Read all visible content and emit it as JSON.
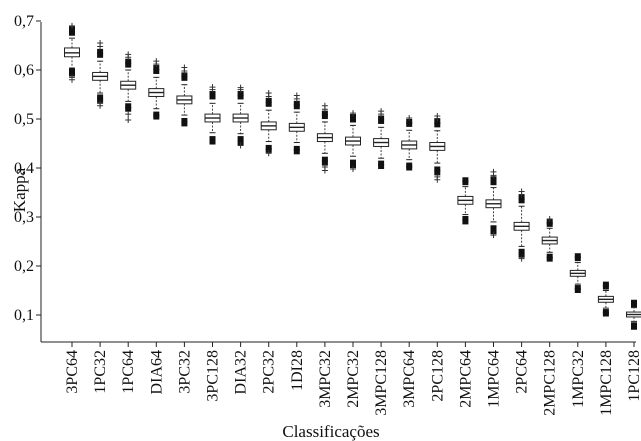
{
  "chart_data": {
    "type": "boxplot",
    "xlabel": "Classificações",
    "ylabel": "Kappa",
    "ylim": [
      0.07,
      0.71
    ],
    "yticks": [
      0.1,
      0.2,
      0.3,
      0.4,
      0.5,
      0.6,
      0.7
    ],
    "ytick_labels": [
      "0,1",
      "0,2",
      "0,3",
      "0,4",
      "0,5",
      "0,6",
      "0,7"
    ],
    "grid": false,
    "categories": [
      "3PC64",
      "1PC32",
      "1PC64",
      "DIA64",
      "3PC32",
      "3PC128",
      "DIA32",
      "2PC32",
      "1DI28",
      "3MPC32",
      "2MPC32",
      "3MPC128",
      "3MPC64",
      "2PC128",
      "2MPC64",
      "1MPC64",
      "2PC64",
      "2MPC128",
      "1MPC32",
      "1MPC128",
      "1PC128"
    ],
    "boxes": [
      {
        "q1": 0.627,
        "median": 0.635,
        "q3": 0.645,
        "whisker_low": 0.604,
        "whisker_high": 0.665,
        "outliers_low": [
          0.598,
          0.592,
          0.585,
          0.58
        ],
        "outliers_high": [
          0.675,
          0.684,
          0.69
        ]
      },
      {
        "q1": 0.579,
        "median": 0.587,
        "q3": 0.595,
        "whisker_low": 0.553,
        "whisker_high": 0.618,
        "outliers_low": [
          0.545,
          0.538,
          0.532,
          0.527
        ],
        "outliers_high": [
          0.63,
          0.638,
          0.648,
          0.655
        ]
      },
      {
        "q1": 0.561,
        "median": 0.569,
        "q3": 0.577,
        "whisker_low": 0.536,
        "whisker_high": 0.6,
        "outliers_low": [
          0.527,
          0.52,
          0.51,
          0.498
        ],
        "outliers_high": [
          0.61,
          0.618,
          0.626,
          0.632
        ]
      },
      {
        "q1": 0.546,
        "median": 0.554,
        "q3": 0.562,
        "whisker_low": 0.521,
        "whisker_high": 0.585,
        "outliers_low": [
          0.51,
          0.504
        ],
        "outliers_high": [
          0.597,
          0.605,
          0.612,
          0.618
        ]
      },
      {
        "q1": 0.531,
        "median": 0.539,
        "q3": 0.547,
        "whisker_low": 0.508,
        "whisker_high": 0.57,
        "outliers_low": [
          0.497,
          0.49
        ],
        "outliers_high": [
          0.583,
          0.59,
          0.598,
          0.605
        ]
      },
      {
        "q1": 0.494,
        "median": 0.502,
        "q3": 0.51,
        "whisker_low": 0.472,
        "whisker_high": 0.532,
        "outliers_low": [
          0.46,
          0.453
        ],
        "outliers_high": [
          0.545,
          0.552,
          0.56,
          0.565
        ]
      },
      {
        "q1": 0.494,
        "median": 0.502,
        "q3": 0.51,
        "whisker_low": 0.47,
        "whisker_high": 0.532,
        "outliers_low": [
          0.46,
          0.452,
          0.446
        ],
        "outliers_high": [
          0.545,
          0.552,
          0.56,
          0.564
        ]
      },
      {
        "q1": 0.478,
        "median": 0.486,
        "q3": 0.494,
        "whisker_low": 0.454,
        "whisker_high": 0.518,
        "outliers_low": [
          0.442,
          0.436,
          0.43
        ],
        "outliers_high": [
          0.53,
          0.538,
          0.546,
          0.553
        ]
      },
      {
        "q1": 0.475,
        "median": 0.483,
        "q3": 0.491,
        "whisker_low": 0.452,
        "whisker_high": 0.514,
        "outliers_low": [
          0.44,
          0.433
        ],
        "outliers_high": [
          0.525,
          0.532,
          0.541,
          0.548
        ]
      },
      {
        "q1": 0.454,
        "median": 0.462,
        "q3": 0.47,
        "whisker_low": 0.43,
        "whisker_high": 0.494,
        "outliers_low": [
          0.418,
          0.41,
          0.402,
          0.395
        ],
        "outliers_high": [
          0.505,
          0.512,
          0.52,
          0.527
        ]
      },
      {
        "q1": 0.447,
        "median": 0.455,
        "q3": 0.463,
        "whisker_low": 0.424,
        "whisker_high": 0.487,
        "outliers_low": [
          0.412,
          0.405,
          0.398
        ],
        "outliers_high": [
          0.498,
          0.505,
          0.512
        ]
      },
      {
        "q1": 0.444,
        "median": 0.452,
        "q3": 0.46,
        "whisker_low": 0.42,
        "whisker_high": 0.483,
        "outliers_low": [
          0.41,
          0.403
        ],
        "outliers_high": [
          0.495,
          0.502,
          0.51,
          0.516
        ]
      },
      {
        "q1": 0.439,
        "median": 0.447,
        "q3": 0.455,
        "whisker_low": 0.417,
        "whisker_high": 0.477,
        "outliers_low": [
          0.406,
          0.4
        ],
        "outliers_high": [
          0.489,
          0.495,
          0.502
        ]
      },
      {
        "q1": 0.436,
        "median": 0.444,
        "q3": 0.452,
        "whisker_low": 0.41,
        "whisker_high": 0.476,
        "outliers_low": [
          0.398,
          0.39,
          0.382,
          0.376
        ],
        "outliers_high": [
          0.488,
          0.495,
          0.501,
          0.506
        ]
      },
      {
        "q1": 0.326,
        "median": 0.334,
        "q3": 0.342,
        "whisker_low": 0.305,
        "whisker_high": 0.362,
        "outliers_low": [
          0.297,
          0.29
        ],
        "outliers_high": [
          0.37,
          0.376
        ]
      },
      {
        "q1": 0.319,
        "median": 0.327,
        "q3": 0.335,
        "whisker_low": 0.29,
        "whisker_high": 0.36,
        "outliers_low": [
          0.278,
          0.27,
          0.263
        ],
        "outliers_high": [
          0.37,
          0.378,
          0.385,
          0.392
        ]
      },
      {
        "q1": 0.273,
        "median": 0.281,
        "q3": 0.289,
        "whisker_low": 0.24,
        "whisker_high": 0.322,
        "outliers_low": [
          0.23,
          0.222,
          0.215
        ],
        "outliers_high": [
          0.333,
          0.34,
          0.346,
          0.352
        ]
      },
      {
        "q1": 0.245,
        "median": 0.252,
        "q3": 0.259,
        "whisker_low": 0.228,
        "whisker_high": 0.277,
        "outliers_low": [
          0.22,
          0.214
        ],
        "outliers_high": [
          0.285,
          0.29,
          0.296
        ]
      },
      {
        "q1": 0.179,
        "median": 0.185,
        "q3": 0.191,
        "whisker_low": 0.163,
        "whisker_high": 0.207,
        "outliers_low": [
          0.156,
          0.15
        ],
        "outliers_high": [
          0.215,
          0.221
        ]
      },
      {
        "q1": 0.126,
        "median": 0.132,
        "q3": 0.138,
        "whisker_low": 0.114,
        "whisker_high": 0.15,
        "outliers_low": [
          0.107,
          0.102
        ],
        "outliers_high": [
          0.157,
          0.163
        ]
      },
      {
        "q1": 0.096,
        "median": 0.101,
        "q3": 0.106,
        "whisker_low": 0.087,
        "whisker_high": 0.115,
        "outliers_low": [
          0.08,
          0.075
        ],
        "outliers_high": [
          0.121,
          0.126
        ]
      }
    ]
  }
}
